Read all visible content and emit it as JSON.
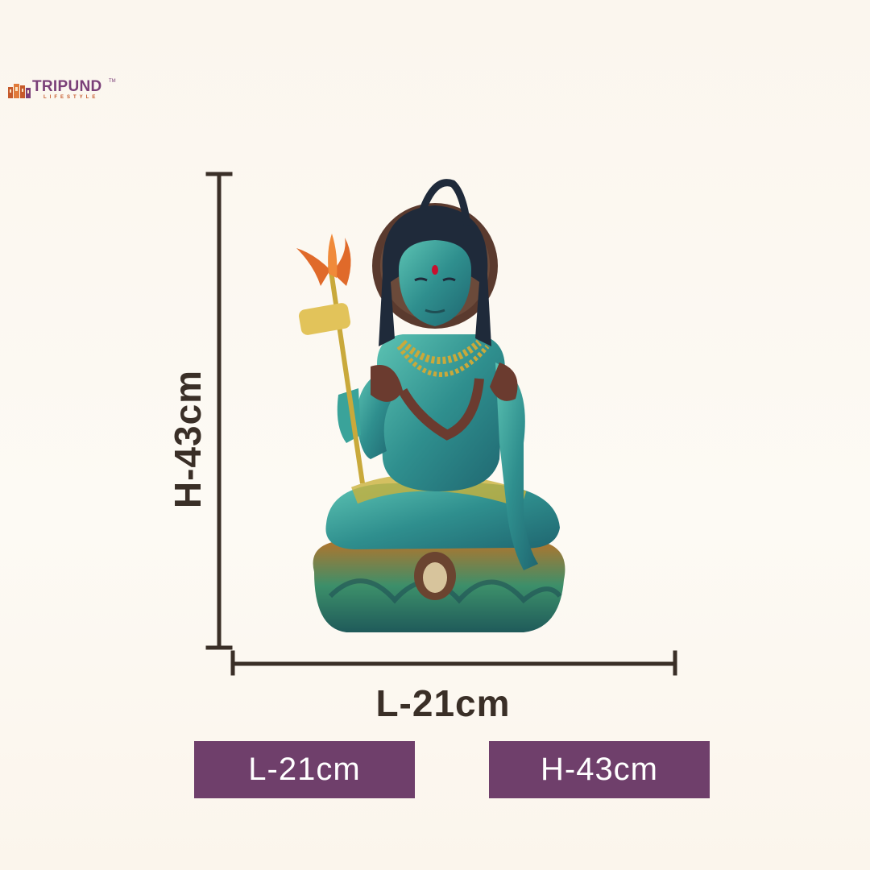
{
  "brand": {
    "name": "TRIPUND",
    "tagline": "LIFESTYLE",
    "trademark": "TM",
    "colors": {
      "primary": "#7a3f78",
      "secondary": "#c65a2b"
    }
  },
  "dimensions": {
    "height_label": "H-43cm",
    "length_label": "L-21cm"
  },
  "badges": {
    "length": "L-21cm",
    "height": "H-43cm",
    "color": "#6f3f6b"
  },
  "product": {
    "image": "shiva-statue-icon",
    "palette": [
      "#3aa39a",
      "#2f7f86",
      "#c9a93b",
      "#6b3b2f",
      "#e06a2a",
      "#1f2a3a"
    ]
  }
}
